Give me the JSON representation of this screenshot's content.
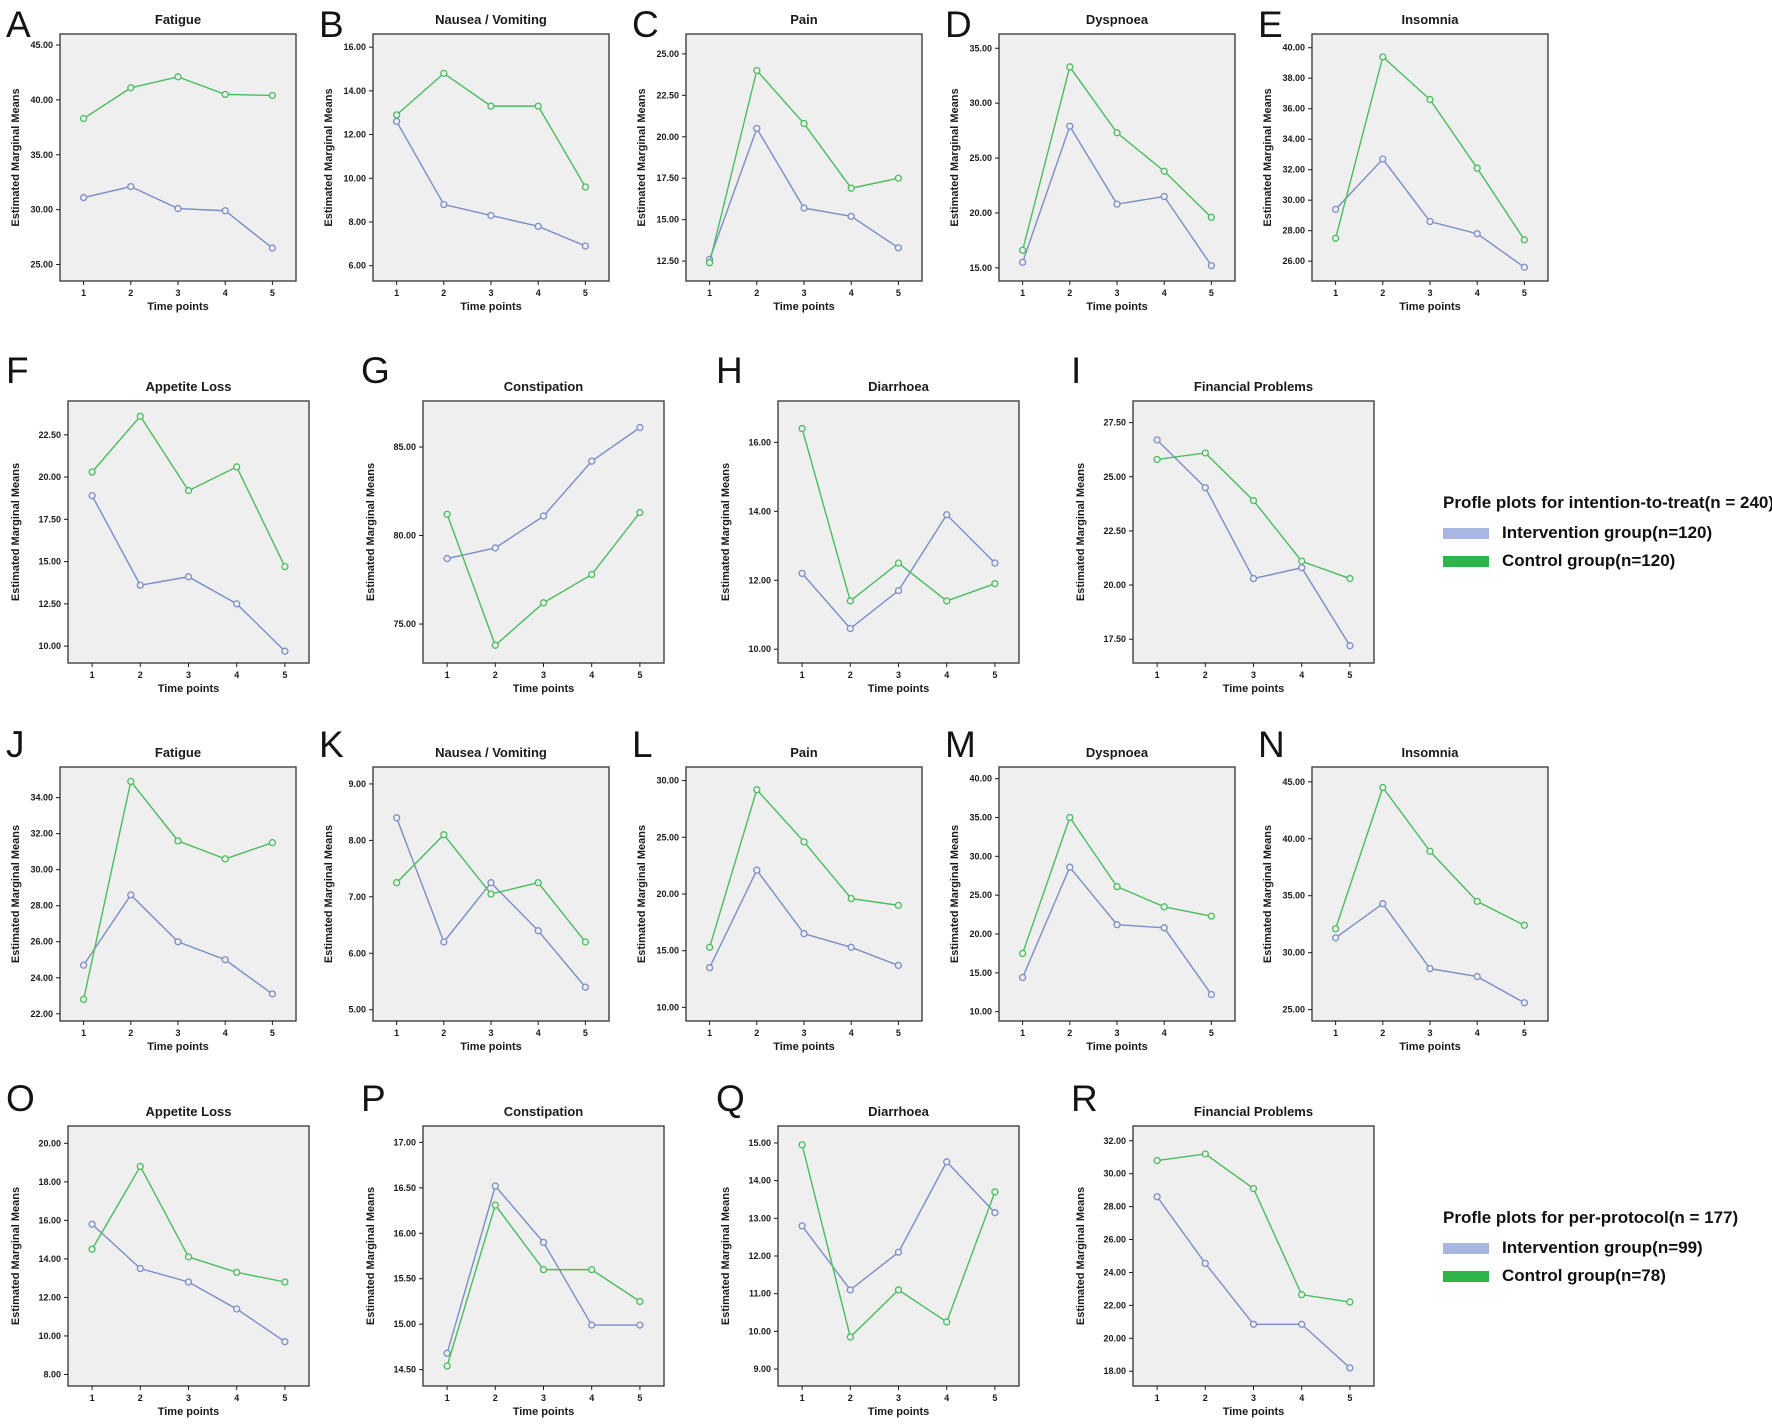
{
  "axis": {
    "x_label": "Time points",
    "y_label": "Estimated Marginal Means",
    "x_ticks": [
      1,
      2,
      3,
      4,
      5
    ]
  },
  "colors": {
    "intervention_line": "#7b8ec8",
    "control_line": "#4abd5f",
    "intervention_swatch": "#a9b7e0",
    "control_swatch": "#2db54a",
    "plot_background": "#efefef",
    "plot_border": "#404040"
  },
  "legends": [
    {
      "title": "Profle plots for intention-to-treat(n = 240)",
      "items": [
        {
          "label": "Intervention group(n=120)",
          "series": "intervention"
        },
        {
          "label": "Control group(n=120)",
          "series": "control"
        }
      ]
    },
    {
      "title": "Profle plots for per-protocol(n = 177)",
      "items": [
        {
          "label": "Intervention group(n=99)",
          "series": "intervention"
        },
        {
          "label": "Control group(n=78)",
          "series": "control"
        }
      ]
    }
  ],
  "chart_data": [
    {
      "letter": "A",
      "row": 0,
      "type": "line",
      "title": "Fatigue",
      "y_ticks": [
        25,
        30,
        35,
        40,
        45
      ],
      "ylim": [
        23.5,
        46
      ],
      "series": [
        {
          "name": "Intervention group",
          "values": [
            31.1,
            32.1,
            30.1,
            29.9,
            26.5
          ]
        },
        {
          "name": "Control group",
          "values": [
            38.3,
            41.1,
            42.1,
            40.5,
            40.4
          ]
        }
      ]
    },
    {
      "letter": "B",
      "row": 0,
      "type": "line",
      "title": "Nausea / Vomiting",
      "y_ticks": [
        6,
        8,
        10,
        12,
        14,
        16
      ],
      "ylim": [
        5.3,
        16.6
      ],
      "series": [
        {
          "name": "Intervention group",
          "values": [
            12.6,
            8.8,
            8.3,
            7.8,
            6.9
          ]
        },
        {
          "name": "Control group",
          "values": [
            12.9,
            14.8,
            13.3,
            13.3,
            9.6
          ]
        }
      ]
    },
    {
      "letter": "C",
      "row": 0,
      "type": "line",
      "title": "Pain",
      "y_ticks": [
        12.5,
        15,
        17.5,
        20,
        22.5,
        25
      ],
      "ylim": [
        11.3,
        26.2
      ],
      "series": [
        {
          "name": "Intervention group",
          "values": [
            12.6,
            20.5,
            15.7,
            15.2,
            13.3
          ]
        },
        {
          "name": "Control group",
          "values": [
            12.4,
            24.0,
            20.8,
            16.9,
            17.5
          ]
        }
      ]
    },
    {
      "letter": "D",
      "row": 0,
      "type": "line",
      "title": "Dyspnoea",
      "y_ticks": [
        15,
        20,
        25,
        30,
        35
      ],
      "ylim": [
        13.8,
        36.3
      ],
      "series": [
        {
          "name": "Intervention group",
          "values": [
            15.5,
            27.9,
            20.8,
            21.5,
            15.2
          ]
        },
        {
          "name": "Control group",
          "values": [
            16.6,
            33.3,
            27.3,
            23.8,
            19.6
          ]
        }
      ]
    },
    {
      "letter": "E",
      "row": 0,
      "type": "line",
      "title": "Insomnia",
      "y_ticks": [
        26,
        28,
        30,
        32,
        34,
        36,
        38,
        40
      ],
      "ylim": [
        24.7,
        40.9
      ],
      "series": [
        {
          "name": "Intervention group",
          "values": [
            29.4,
            32.7,
            28.6,
            27.8,
            25.6
          ]
        },
        {
          "name": "Control group",
          "values": [
            27.5,
            39.4,
            36.6,
            32.1,
            27.4
          ]
        }
      ]
    },
    {
      "letter": "F",
      "row": 1,
      "type": "line",
      "title": "Appetite Loss",
      "y_ticks": [
        10,
        12.5,
        15,
        17.5,
        20,
        22.5
      ],
      "ylim": [
        9.0,
        24.5
      ],
      "series": [
        {
          "name": "Intervention group",
          "values": [
            18.9,
            13.6,
            14.1,
            12.5,
            9.7
          ]
        },
        {
          "name": "Control group",
          "values": [
            20.3,
            23.6,
            19.2,
            20.6,
            14.7
          ]
        }
      ]
    },
    {
      "letter": "G",
      "row": 1,
      "type": "line",
      "title": "Constipation",
      "y_ticks": [
        75,
        80,
        85
      ],
      "ylim": [
        72.8,
        87.6
      ],
      "series": [
        {
          "name": "Intervention group",
          "values": [
            78.7,
            79.3,
            81.1,
            84.2,
            86.1
          ]
        },
        {
          "name": "Control group",
          "values": [
            81.2,
            73.8,
            76.2,
            77.8,
            81.3
          ]
        }
      ]
    },
    {
      "letter": "H",
      "row": 1,
      "type": "line",
      "title": "Diarrhoea",
      "y_ticks": [
        10,
        12,
        14,
        16
      ],
      "ylim": [
        9.6,
        17.2
      ],
      "series": [
        {
          "name": "Intervention group",
          "values": [
            12.2,
            10.6,
            11.7,
            13.9,
            12.5
          ]
        },
        {
          "name": "Control group",
          "values": [
            16.4,
            11.4,
            12.5,
            11.4,
            11.9
          ]
        }
      ]
    },
    {
      "letter": "I",
      "row": 1,
      "type": "line",
      "title": "Financial Problems",
      "y_ticks": [
        17.5,
        20,
        22.5,
        25,
        27.5
      ],
      "ylim": [
        16.4,
        28.5
      ],
      "series": [
        {
          "name": "Intervention group",
          "values": [
            26.7,
            24.5,
            20.3,
            20.8,
            17.2
          ]
        },
        {
          "name": "Control group",
          "values": [
            25.8,
            26.1,
            23.9,
            21.1,
            20.3
          ]
        }
      ]
    },
    {
      "letter": "J",
      "row": 2,
      "type": "line",
      "title": "Fatigue",
      "y_ticks": [
        22,
        24,
        26,
        28,
        30,
        32,
        34
      ],
      "ylim": [
        21.6,
        35.7
      ],
      "series": [
        {
          "name": "Intervention group",
          "values": [
            24.7,
            28.6,
            26.0,
            25.0,
            23.1
          ]
        },
        {
          "name": "Control group",
          "values": [
            22.8,
            34.9,
            31.6,
            30.6,
            31.5
          ]
        }
      ]
    },
    {
      "letter": "K",
      "row": 2,
      "type": "line",
      "title": "Nausea / Vomiting",
      "y_ticks": [
        5,
        6,
        7,
        8,
        9
      ],
      "ylim": [
        4.8,
        9.3
      ],
      "series": [
        {
          "name": "Intervention group",
          "values": [
            8.4,
            6.2,
            7.25,
            6.4,
            5.4
          ]
        },
        {
          "name": "Control group",
          "values": [
            7.25,
            8.1,
            7.05,
            7.25,
            6.2
          ]
        }
      ]
    },
    {
      "letter": "L",
      "row": 2,
      "type": "line",
      "title": "Pain",
      "y_ticks": [
        10,
        15,
        20,
        25,
        30
      ],
      "ylim": [
        8.8,
        31.2
      ],
      "series": [
        {
          "name": "Intervention group",
          "values": [
            13.5,
            22.1,
            16.5,
            15.3,
            13.7
          ]
        },
        {
          "name": "Control group",
          "values": [
            15.3,
            29.2,
            24.6,
            19.6,
            19.0
          ]
        }
      ]
    },
    {
      "letter": "M",
      "row": 2,
      "type": "line",
      "title": "Dyspnoea",
      "y_ticks": [
        10,
        15,
        20,
        25,
        30,
        35,
        40
      ],
      "ylim": [
        8.8,
        41.5
      ],
      "series": [
        {
          "name": "Intervention group",
          "values": [
            14.4,
            28.6,
            21.2,
            20.8,
            12.2
          ]
        },
        {
          "name": "Control group",
          "values": [
            17.5,
            35.0,
            26.1,
            23.5,
            22.3
          ]
        }
      ]
    },
    {
      "letter": "N",
      "row": 2,
      "type": "line",
      "title": "Insomnia",
      "y_ticks": [
        25,
        30,
        35,
        40,
        45
      ],
      "ylim": [
        24.0,
        46.3
      ],
      "series": [
        {
          "name": "Intervention group",
          "values": [
            31.3,
            34.3,
            28.6,
            27.9,
            25.6
          ]
        },
        {
          "name": "Control group",
          "values": [
            32.1,
            44.5,
            38.9,
            34.5,
            32.4
          ]
        }
      ]
    },
    {
      "letter": "O",
      "row": 3,
      "type": "line",
      "title": "Appetite Loss",
      "y_ticks": [
        8,
        10,
        12,
        14,
        16,
        18,
        20
      ],
      "ylim": [
        7.4,
        20.9
      ],
      "series": [
        {
          "name": "Intervention group",
          "values": [
            15.8,
            13.5,
            12.8,
            11.4,
            9.7
          ]
        },
        {
          "name": "Control group",
          "values": [
            14.5,
            18.8,
            14.1,
            13.3,
            12.8
          ]
        }
      ]
    },
    {
      "letter": "P",
      "row": 3,
      "type": "line",
      "title": "Constipation",
      "y_ticks": [
        14.5,
        15,
        15.5,
        16,
        16.5,
        17
      ],
      "ylim": [
        14.32,
        17.18
      ],
      "series": [
        {
          "name": "Intervention group",
          "values": [
            14.68,
            16.52,
            15.9,
            14.99,
            14.99
          ]
        },
        {
          "name": "Control group",
          "values": [
            14.54,
            16.31,
            15.6,
            15.6,
            15.25
          ]
        }
      ]
    },
    {
      "letter": "Q",
      "row": 3,
      "type": "line",
      "title": "Diarrhoea",
      "y_ticks": [
        9,
        10,
        11,
        12,
        13,
        14,
        15
      ],
      "ylim": [
        8.55,
        15.45
      ],
      "series": [
        {
          "name": "Intervention group",
          "values": [
            12.8,
            11.1,
            12.1,
            14.5,
            13.15
          ]
        },
        {
          "name": "Control group",
          "values": [
            14.95,
            9.85,
            11.1,
            10.25,
            13.7
          ]
        }
      ]
    },
    {
      "letter": "R",
      "row": 3,
      "type": "line",
      "title": "Financial Problems",
      "y_ticks": [
        18,
        20,
        22,
        24,
        26,
        28,
        30,
        32
      ],
      "ylim": [
        17.1,
        32.9
      ],
      "series": [
        {
          "name": "Intervention group",
          "values": [
            28.6,
            24.55,
            20.85,
            20.85,
            18.2
          ]
        },
        {
          "name": "Control group",
          "values": [
            30.8,
            31.2,
            29.1,
            22.65,
            22.2
          ]
        }
      ]
    }
  ]
}
